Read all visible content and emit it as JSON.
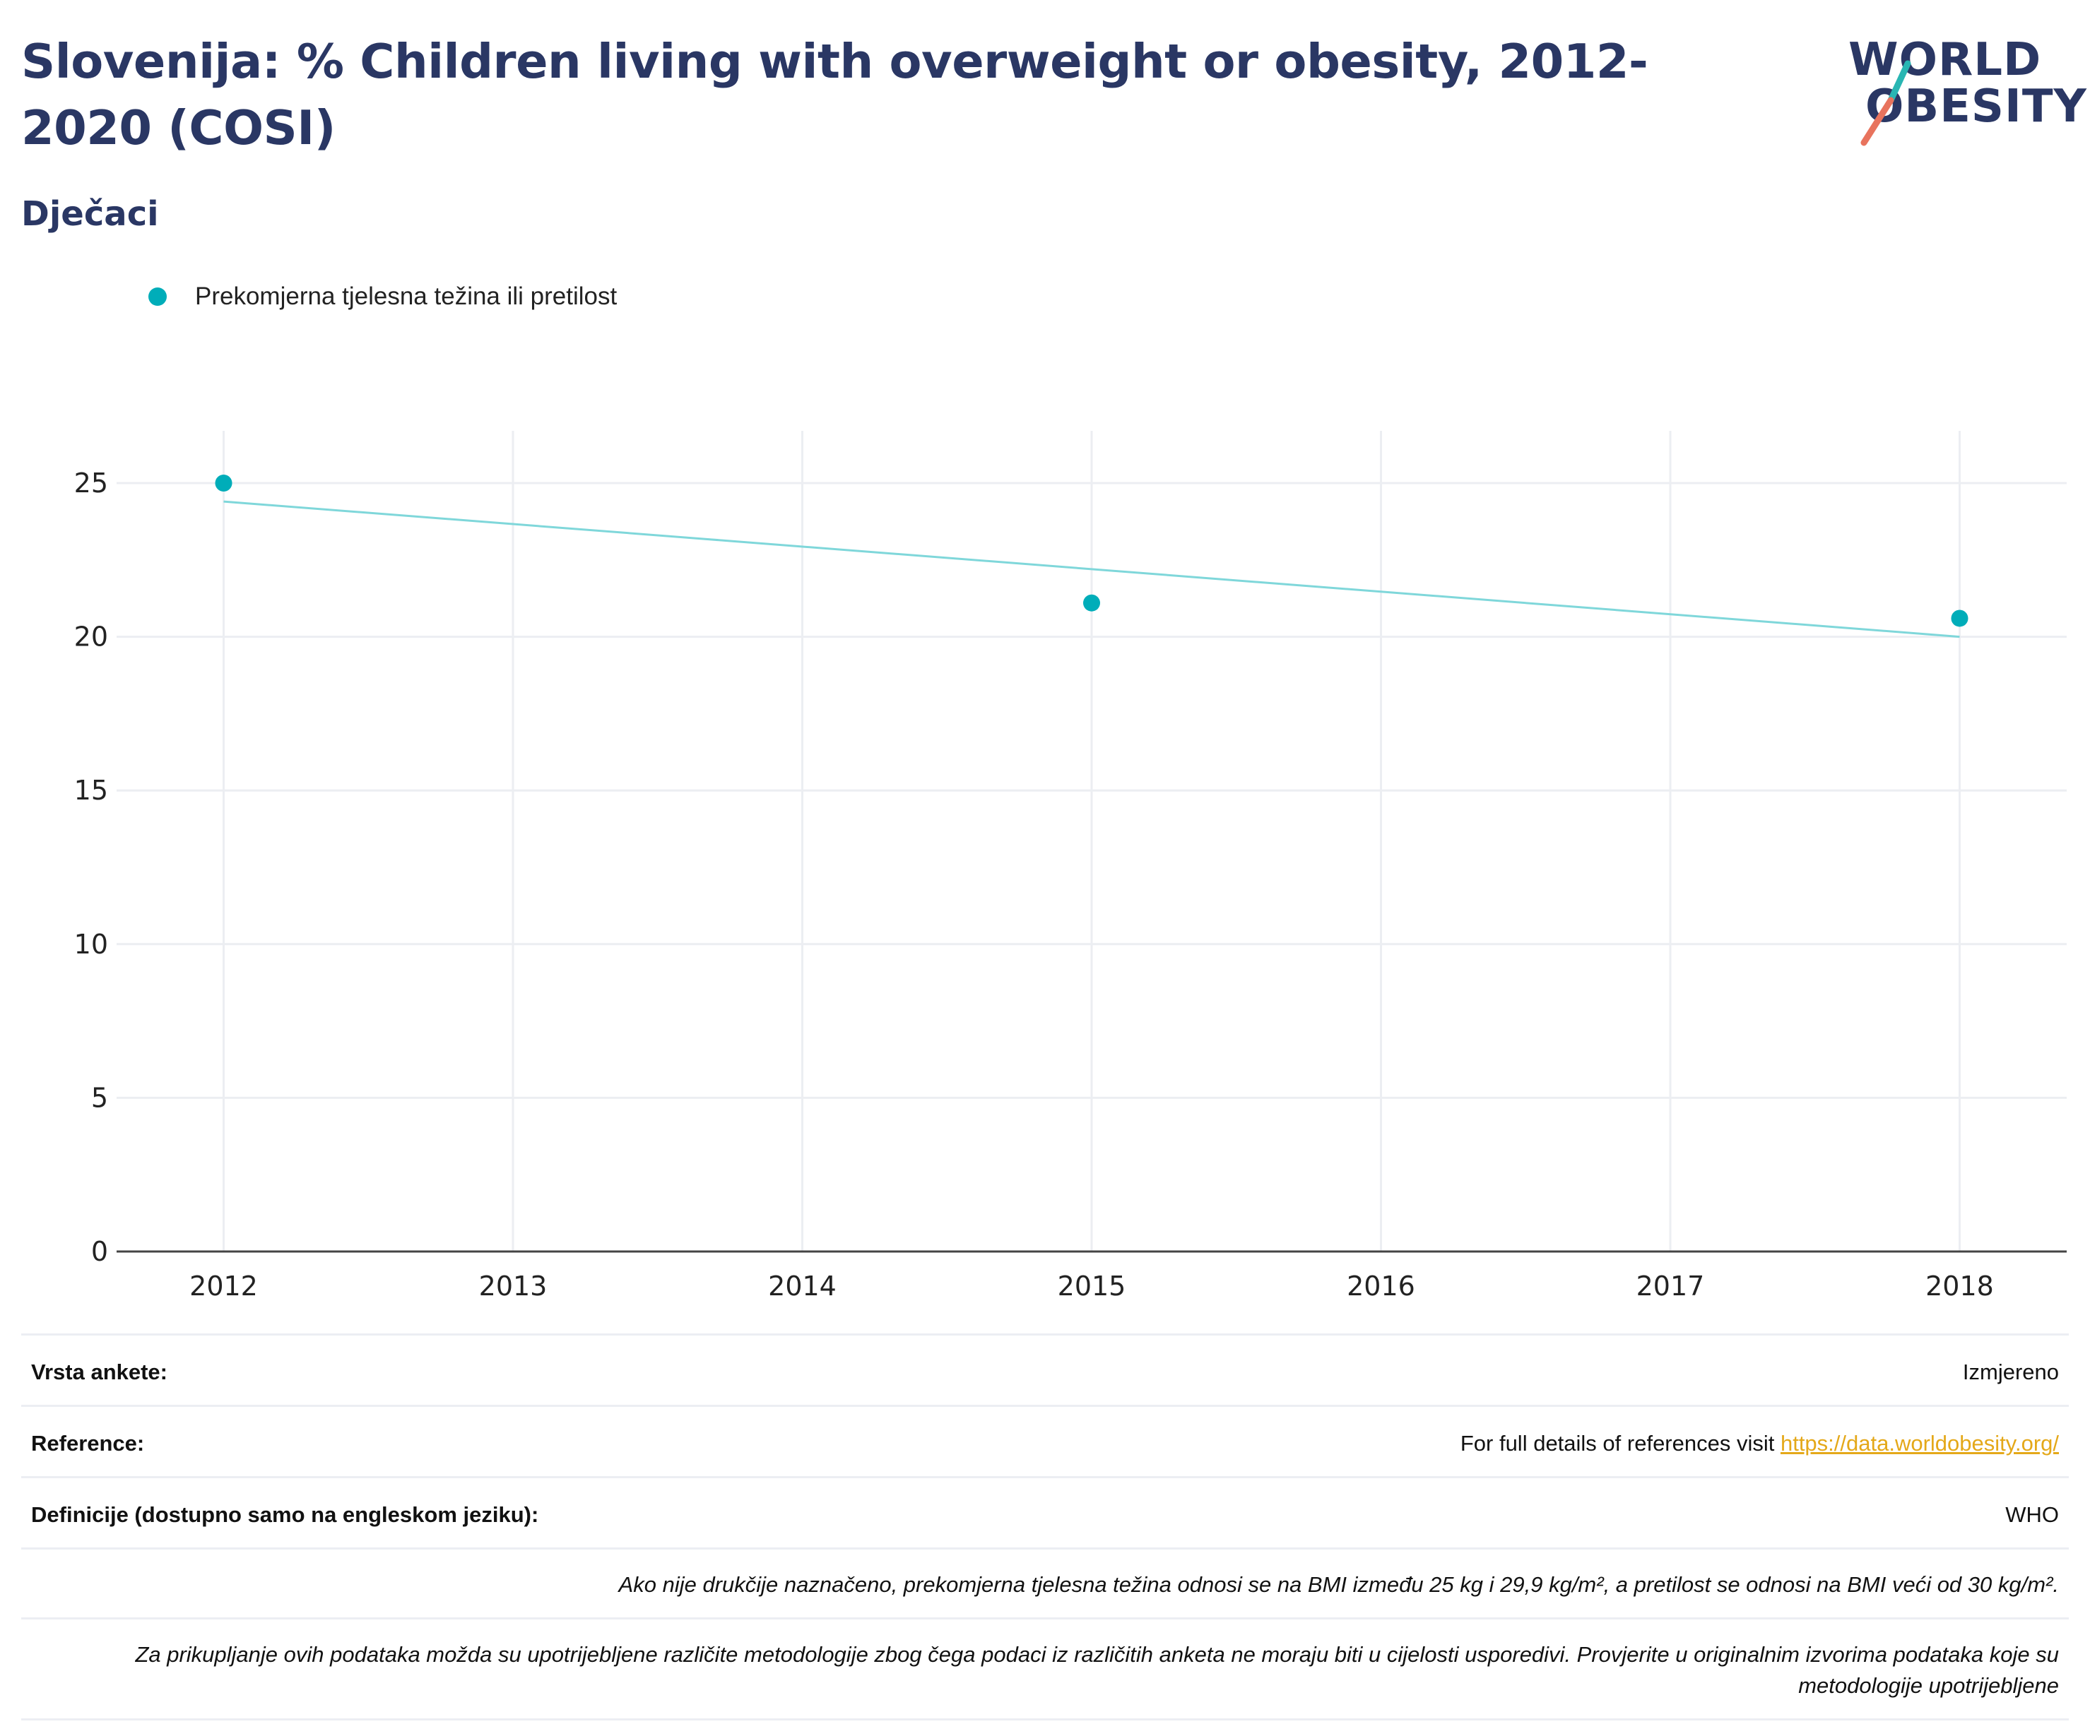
{
  "header": {
    "title": "Slovenija: % Children living with overweight or obesity, 2012-2020 (COSI)",
    "subtitle": "Dječaci"
  },
  "logo": {
    "line1": "WORLD",
    "line2": "OBESITY",
    "slash_colors": [
      "#29b6b3",
      "#e8735d"
    ]
  },
  "colors": {
    "series": "#00adb9",
    "trend": "#7fd7da",
    "title": "#2a3764",
    "link": "#e4a819"
  },
  "chart_data": {
    "type": "scatter",
    "x": [
      2012,
      2015,
      2018
    ],
    "series": [
      {
        "name": "Prekomjerna tjelesna težina ili pretilost",
        "values": [
          25.0,
          21.1,
          20.6
        ]
      }
    ],
    "trendline": {
      "x": [
        2012,
        2018
      ],
      "y": [
        24.4,
        20.0
      ]
    },
    "xlim": [
      2011.63,
      2018.37
    ],
    "ylim": [
      0,
      26.7
    ],
    "xticks": [
      2012,
      2013,
      2014,
      2015,
      2016,
      2017,
      2018
    ],
    "yticks": [
      0,
      5,
      10,
      15,
      20,
      25
    ],
    "grid": true,
    "legend_position": "top-left"
  },
  "info": {
    "rows": [
      {
        "label": "Vrsta ankete:",
        "value": "Izmjereno"
      },
      {
        "label": "Reference:",
        "value": "For full details of references visit ",
        "link": "https://data.worldobesity.org/"
      },
      {
        "label": "Definicije (dostupno samo na engleskom jeziku):",
        "value": "WHO"
      }
    ],
    "notes": [
      "Ako nije drukčije naznačeno, prekomjerna tjelesna težina odnosi se na BMI između 25 kg i 29,9 kg/m², a pretilost se odnosi na BMI veći od 30 kg/m².",
      "Za prikupljanje ovih podataka možda su upotrijebljene različite metodologije zbog čega podaci iz različitih anketa ne moraju biti u cijelosti usporedivi. Provjerite u originalnim izvorima podataka koje su metodologije upotrijebljene"
    ]
  }
}
